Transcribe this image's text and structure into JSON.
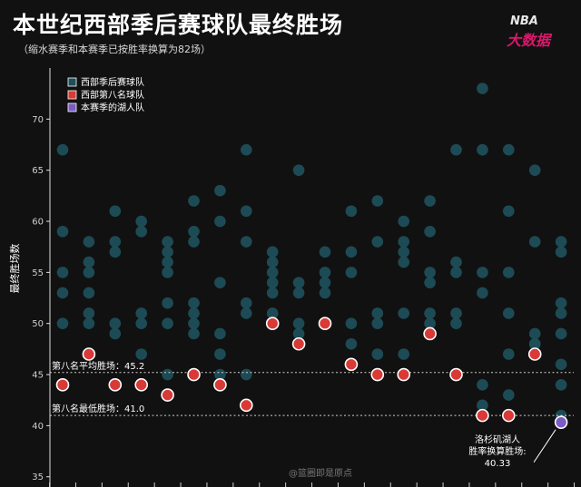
{
  "header": {
    "title": "本世纪西部季后赛球队最终胜场",
    "subtitle": "（缩水赛季和本赛季已按胜率换算为82场）",
    "logo_text": "NBA",
    "logo_subtext": "大数据",
    "watermark": "@篮圈即是原点"
  },
  "colors": {
    "background": "#111111",
    "playoff_team": "#1f4f5a",
    "eighth_seed": "#d93a36",
    "lakers": "#7b5cc4",
    "reference_line": "#cfcfcf",
    "brand": "#d9186b"
  },
  "chart_data": {
    "type": "scatter",
    "title": "本世纪西部季后赛球队最终胜场",
    "subtitle": "（缩水赛季和本赛季已按胜率换算为82场）",
    "xlabel": "",
    "ylabel": "最终胜场数",
    "ylim": [
      34,
      75
    ],
    "yticks": [
      35,
      40,
      45,
      50,
      55,
      60,
      65,
      70
    ],
    "grid": false,
    "legend_placement": "top-left",
    "legend": [
      {
        "label": "西部季后赛球队",
        "color": "#1f4f5a"
      },
      {
        "label": "西部第八名球队",
        "color": "#d93a36"
      },
      {
        "label": "本赛季的湖人队",
        "color": "#7b5cc4"
      }
    ],
    "series": [
      {
        "name": "西部季后赛球队",
        "points_by_season": [
          [
            67,
            59,
            55,
            53,
            50
          ],
          [
            58,
            56,
            55,
            53,
            51,
            50
          ],
          [
            61,
            58,
            57,
            50,
            49
          ],
          [
            60,
            59,
            51,
            50,
            47
          ],
          [
            58,
            57,
            56,
            55,
            52,
            50,
            45
          ],
          [
            62,
            59,
            58,
            52,
            51,
            50,
            49
          ],
          [
            63,
            60,
            54,
            49,
            47,
            45
          ],
          [
            67,
            61,
            58,
            52,
            51,
            45
          ],
          [
            57,
            56,
            55,
            54,
            53,
            51
          ],
          [
            65,
            54,
            53,
            50,
            49
          ],
          [
            57,
            55,
            54,
            53
          ],
          [
            61,
            57,
            55,
            50,
            48
          ],
          [
            62,
            58,
            51,
            50,
            47
          ],
          [
            60,
            58,
            57,
            56,
            51,
            47
          ],
          [
            62,
            59,
            55,
            54,
            51,
            50
          ],
          [
            67,
            56,
            55,
            51,
            50
          ],
          [
            73,
            67,
            55,
            53,
            44,
            42
          ],
          [
            67,
            61,
            55,
            51,
            47,
            43
          ],
          [
            65,
            58,
            49,
            48,
            48
          ],
          [
            58,
            57,
            52,
            51,
            49,
            46,
            44,
            41
          ]
        ]
      },
      {
        "name": "西部第八名球队",
        "values": [
          44,
          47,
          44,
          44,
          43,
          45,
          44,
          42,
          50,
          48,
          50,
          46,
          45,
          45,
          49,
          45,
          41,
          41,
          47
        ]
      },
      {
        "name": "本赛季的湖人队",
        "values": [
          40.33
        ]
      }
    ],
    "reference_lines": [
      {
        "label": "第八名平均胜场：45.2",
        "value": 45.2
      },
      {
        "label": "第八名最低胜场：41.0",
        "value": 41.0
      }
    ],
    "annotation": {
      "lines": [
        "洛杉矶湖人",
        "胜率换算胜场:",
        "40.33"
      ]
    }
  }
}
